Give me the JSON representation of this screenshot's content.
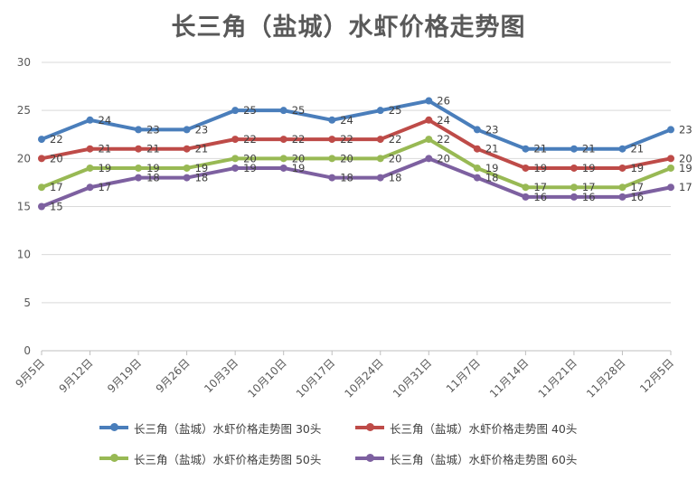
{
  "chart_data": {
    "type": "line",
    "title": "长三角（盐城）水虾价格走势图",
    "xlabel": "",
    "ylabel": "",
    "ylim": [
      0,
      30
    ],
    "yticks": [
      0,
      5,
      10,
      15,
      20,
      25,
      30
    ],
    "grid": true,
    "legend_position": "bottom",
    "categories": [
      "9月5日",
      "9月12日",
      "9月19日",
      "9月26日",
      "10月3日",
      "10月10日",
      "10月17日",
      "10月24日",
      "10月31日",
      "11月7日",
      "11月14日",
      "11月21日",
      "11月28日",
      "12月5日"
    ],
    "series": [
      {
        "name": "长三角（盐城）水虾价格走势图 30头",
        "color": "#4a7ebb",
        "values": [
          22,
          24,
          23,
          23,
          25,
          25,
          24,
          25,
          26,
          23,
          21,
          21,
          21,
          23
        ]
      },
      {
        "name": "长三角（盐城）水虾价格走势图 40头",
        "color": "#be4b48",
        "values": [
          20,
          21,
          21,
          21,
          22,
          22,
          22,
          22,
          24,
          21,
          19,
          19,
          19,
          20
        ]
      },
      {
        "name": "长三角（盐城）水虾价格走势图 50头",
        "color": "#98b954",
        "values": [
          17,
          19,
          19,
          19,
          20,
          20,
          20,
          20,
          22,
          19,
          17,
          17,
          17,
          19
        ]
      },
      {
        "name": "长三角（盐城）水虾价格走势图 60头",
        "color": "#7d60a0",
        "values": [
          15,
          17,
          18,
          18,
          19,
          19,
          18,
          18,
          20,
          18,
          16,
          16,
          16,
          17
        ]
      }
    ]
  }
}
